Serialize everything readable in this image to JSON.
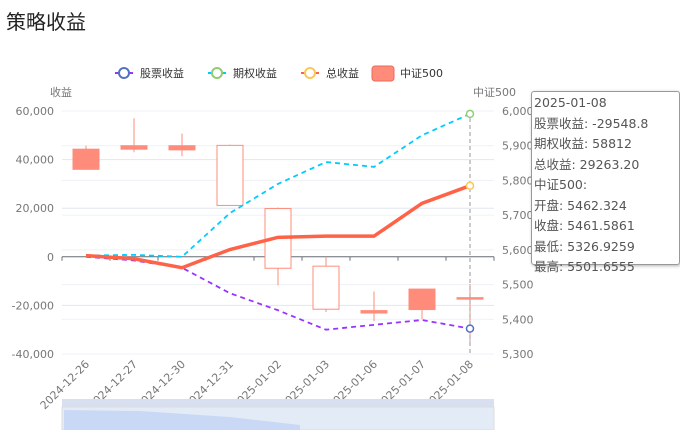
{
  "title": "策略收益",
  "chart_data": {
    "type": "line+candlestick",
    "categories": [
      "2024-12-26",
      "2024-12-27",
      "2024-12-30",
      "2024-12-31",
      "2025-01-02",
      "2025-01-03",
      "2025-01-06",
      "2025-01-07",
      "2025-01-08"
    ],
    "left_axis": {
      "label": "收益",
      "ylim": [
        -40000,
        60000
      ],
      "ticks": [
        "60,000",
        "40,000",
        "20,000",
        "0",
        "-20,000",
        "-40,000"
      ]
    },
    "right_axis": {
      "label": "中证500",
      "ylim": [
        5300,
        6000
      ],
      "ticks": [
        "6,000",
        "5,900",
        "5,800",
        "5,700",
        "5,600",
        "5,500",
        "5,400",
        "5,300"
      ]
    },
    "series": [
      {
        "name": "股票收益",
        "color": "#9933ff",
        "legend_color": "#5470c6",
        "values": [
          0,
          -1500,
          -4500,
          -15000,
          -22000,
          -30000,
          -28000,
          -26000,
          -29548.8
        ]
      },
      {
        "name": "期权收益",
        "color": "#00ccff",
        "legend_color": "#91cc75",
        "values": [
          500,
          800,
          0,
          18000,
          30000,
          39000,
          37000,
          50000,
          58812
        ]
      },
      {
        "name": "总收益",
        "color": "#ff6347",
        "legend_color": "#fac858",
        "values": [
          500,
          -800,
          -4500,
          3000,
          8000,
          8500,
          8500,
          22000,
          29263.2
        ]
      }
    ],
    "candles": {
      "name": "中证500",
      "color": "#ff8c7a",
      "ohlc": [
        [
          5890,
          5832,
          5832,
          5900
        ],
        [
          5900,
          5890,
          5881,
          5979
        ],
        [
          5900,
          5888,
          5870,
          5935
        ],
        [
          5728,
          5901,
          5728,
          5903
        ],
        [
          5547,
          5719,
          5498,
          5722
        ],
        [
          5429,
          5553,
          5421,
          5580
        ],
        [
          5425,
          5418,
          5395,
          5480
        ],
        [
          5487,
          5428,
          5400,
          5487
        ],
        [
          5462.324,
          5461.5861,
          5326.9259,
          5501.6555
        ]
      ]
    }
  },
  "tooltip": {
    "date": "2025-01-08",
    "lines": [
      "股票收益: -29548.8",
      "期权收益: 58812",
      "总收益: 29263.20",
      "中证500:",
      "开盘: 5462.324",
      "收盘: 5461.5861",
      "最低: 5326.9259",
      "最高: 5501.6555"
    ]
  }
}
